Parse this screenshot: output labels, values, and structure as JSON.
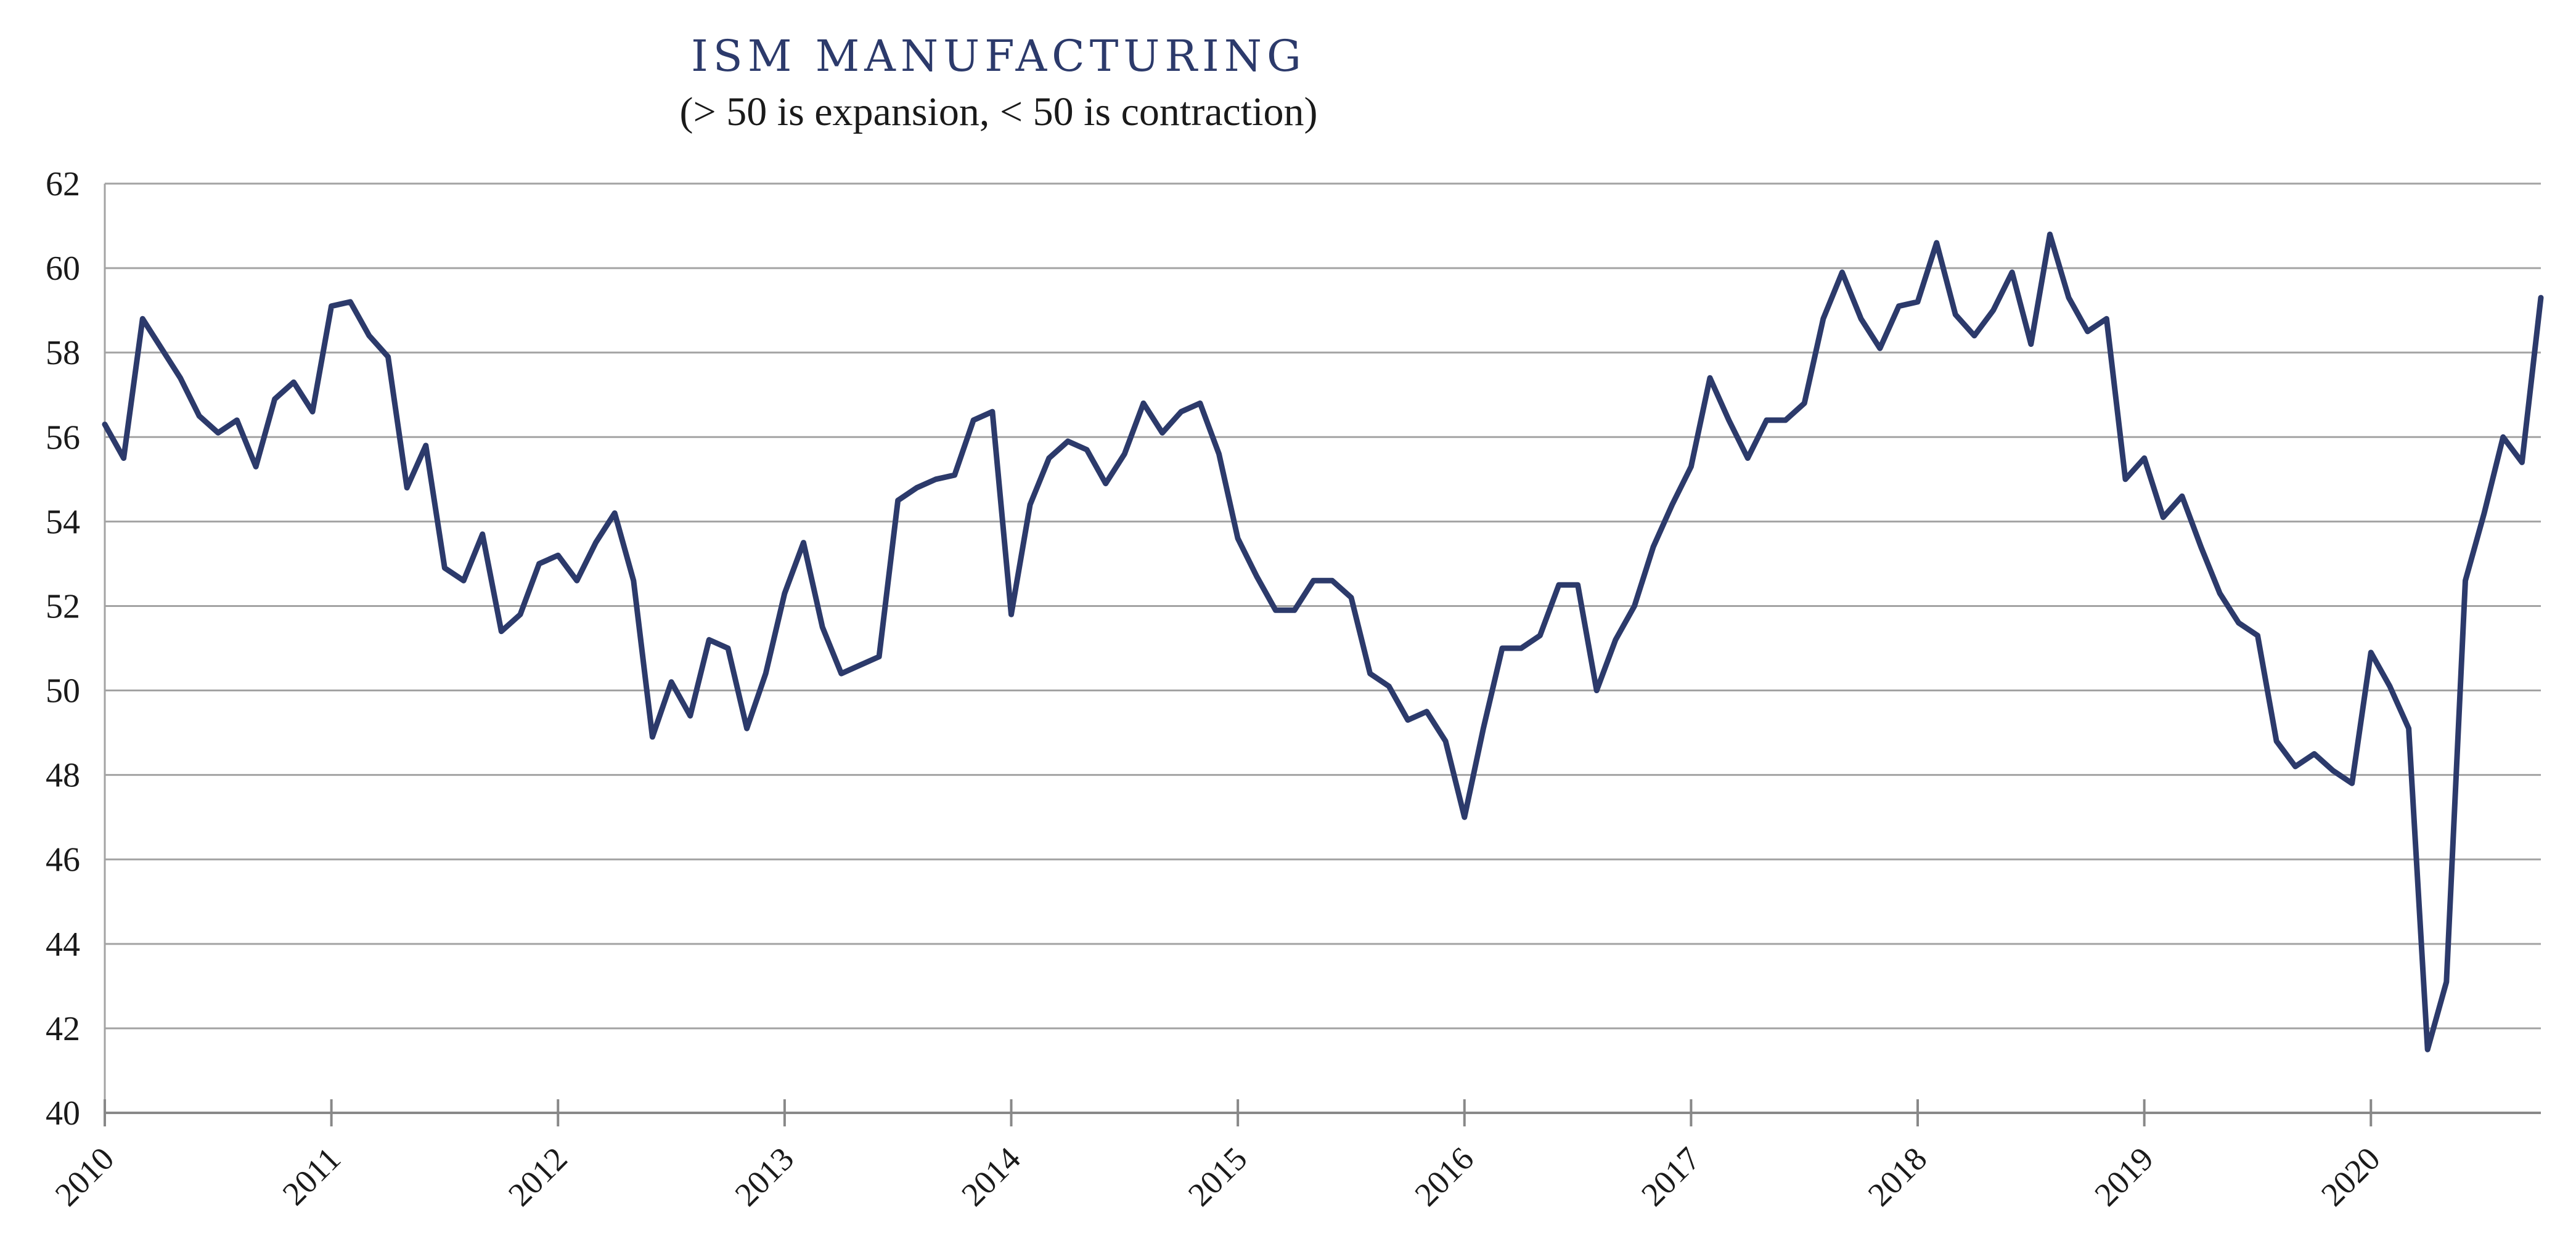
{
  "chart_data": {
    "type": "line",
    "title": "ISM MANUFACTURING",
    "subtitle": "(> 50 is expansion, < 50 is contraction)",
    "xlabel": "",
    "ylabel": "",
    "ylim": [
      40,
      62
    ],
    "yticks": [
      "40",
      "42",
      "44",
      "46",
      "48",
      "50",
      "52",
      "54",
      "56",
      "58",
      "60",
      "62"
    ],
    "x_tick_labels": [
      "2010",
      "2011",
      "2012",
      "2013",
      "2014",
      "2015",
      "2016",
      "2017",
      "2018",
      "2019",
      "2020"
    ],
    "x_start_year": 2010,
    "x_end_year": 2020.75,
    "grid": true,
    "legend": "none",
    "line_color": "#2c3a6b",
    "series": [
      {
        "values": [
          56.3,
          55.5,
          58.8,
          58.1,
          57.4,
          56.5,
          56.1,
          56.4,
          55.3,
          56.9,
          57.3,
          56.6,
          59.1,
          59.2,
          58.4,
          57.9,
          54.8,
          55.8,
          52.9,
          52.6,
          53.7,
          51.4,
          51.8,
          53.0,
          53.2,
          52.6,
          53.5,
          54.2,
          52.6,
          48.9,
          50.2,
          49.4,
          51.2,
          51.0,
          49.1,
          50.4,
          52.3,
          53.5,
          51.5,
          50.4,
          50.6,
          50.8,
          54.5,
          54.8,
          55.0,
          55.1,
          56.4,
          56.6,
          51.8,
          54.4,
          55.5,
          55.9,
          55.7,
          54.9,
          55.6,
          56.8,
          56.1,
          56.6,
          56.8,
          55.6,
          53.6,
          52.7,
          51.9,
          51.9,
          52.6,
          52.6,
          52.2,
          50.4,
          50.1,
          49.3,
          49.5,
          48.8,
          47.0,
          49.1,
          51.0,
          51.0,
          51.3,
          52.5,
          52.5,
          50.0,
          51.2,
          52.0,
          53.4,
          54.4,
          55.3,
          57.4,
          56.4,
          55.5,
          56.4,
          56.4,
          56.8,
          58.8,
          59.9,
          58.8,
          58.1,
          59.1,
          59.2,
          60.6,
          58.9,
          58.4,
          59.0,
          59.9,
          58.2,
          60.8,
          59.3,
          58.5,
          58.8,
          55.0,
          55.5,
          54.1,
          54.6,
          53.4,
          52.3,
          51.6,
          51.3,
          48.8,
          48.2,
          48.5,
          48.1,
          47.8,
          50.9,
          50.1,
          49.1,
          41.5,
          43.1,
          52.6,
          54.2,
          56.0,
          55.4,
          59.3
        ]
      }
    ]
  }
}
